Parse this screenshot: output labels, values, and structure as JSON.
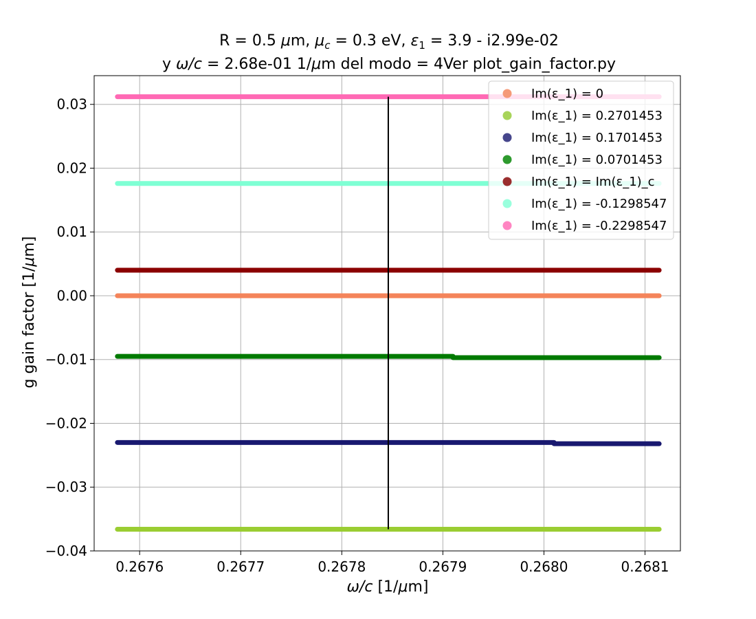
{
  "chart_data": {
    "type": "scatter",
    "title_line1": "R = 0.5 μm, μ_c = 0.3 eV, ε_1 = 3.9 - i2.99e-02",
    "title_line2": "y ω/c = 2.68e-01 1/μm del modo = 4Ver plot_gain_factor.py",
    "xlabel": "ω/c [1/μm]",
    "ylabel": "g gain factor [1/μm]",
    "xlim": [
      0.267555,
      0.268135
    ],
    "ylim": [
      -0.04,
      0.0345
    ],
    "xticks": [
      0.2676,
      0.2677,
      0.2678,
      0.2679,
      0.268,
      0.2681
    ],
    "xtick_labels": [
      "0.2676",
      "0.2677",
      "0.2678",
      "0.2679",
      "0.2680",
      "0.2681"
    ],
    "yticks": [
      -0.04,
      -0.03,
      -0.02,
      -0.01,
      0.0,
      0.01,
      0.02,
      0.03
    ],
    "ytick_labels": [
      "−0.04",
      "−0.03",
      "−0.02",
      "−0.01",
      "0.00",
      "0.01",
      "0.02",
      "0.03"
    ],
    "grid": true,
    "legend_position": "top-right",
    "vline": {
      "x": 0.267846,
      "ymin": -0.0366,
      "ymax": 0.0312,
      "color": "#000000"
    },
    "series": [
      {
        "name": "Im(ε_1) = 0",
        "color": "#f4845a",
        "legend_color": "#f59a78",
        "segments": [
          {
            "x_start": 0.267578,
            "x_end": 0.268114,
            "y": 0.0
          }
        ]
      },
      {
        "name": "Im(ε_1) = 0.2701453",
        "color": "#9acd32",
        "legend_color": "#a8d45a",
        "segments": [
          {
            "x_start": 0.267578,
            "x_end": 0.268114,
            "y": -0.0366
          }
        ]
      },
      {
        "name": "Im(ε_1) = 0.1701453",
        "color": "#191970",
        "legend_color": "#46468c",
        "segments": [
          {
            "x_start": 0.267578,
            "x_end": 0.26801,
            "y": -0.023
          },
          {
            "x_start": 0.26801,
            "x_end": 0.268114,
            "y": -0.0232
          }
        ]
      },
      {
        "name": "Im(ε_1) = 0.0701453",
        "color": "#007a00",
        "legend_color": "#2e9a2e",
        "segments": [
          {
            "x_start": 0.267578,
            "x_end": 0.26791,
            "y": -0.0095
          },
          {
            "x_start": 0.26791,
            "x_end": 0.268114,
            "y": -0.0097
          }
        ]
      },
      {
        "name": "Im(ε_1) = Im(ε_1)_c",
        "color": "#8b0000",
        "legend_color": "#9a2e2e",
        "segments": [
          {
            "x_start": 0.267578,
            "x_end": 0.268114,
            "y": 0.004
          }
        ]
      },
      {
        "name": "Im(ε_1) = -0.1298547",
        "color": "#7fffd4",
        "legend_color": "#99ffdd",
        "segments": [
          {
            "x_start": 0.267578,
            "x_end": 0.268114,
            "y": 0.0176
          }
        ]
      },
      {
        "name": "Im(ε_1) = -0.2298547",
        "color": "#ff69b4",
        "legend_color": "#ff85c2",
        "segments": [
          {
            "x_start": 0.267578,
            "x_end": 0.268114,
            "y": 0.0312
          }
        ]
      }
    ]
  }
}
